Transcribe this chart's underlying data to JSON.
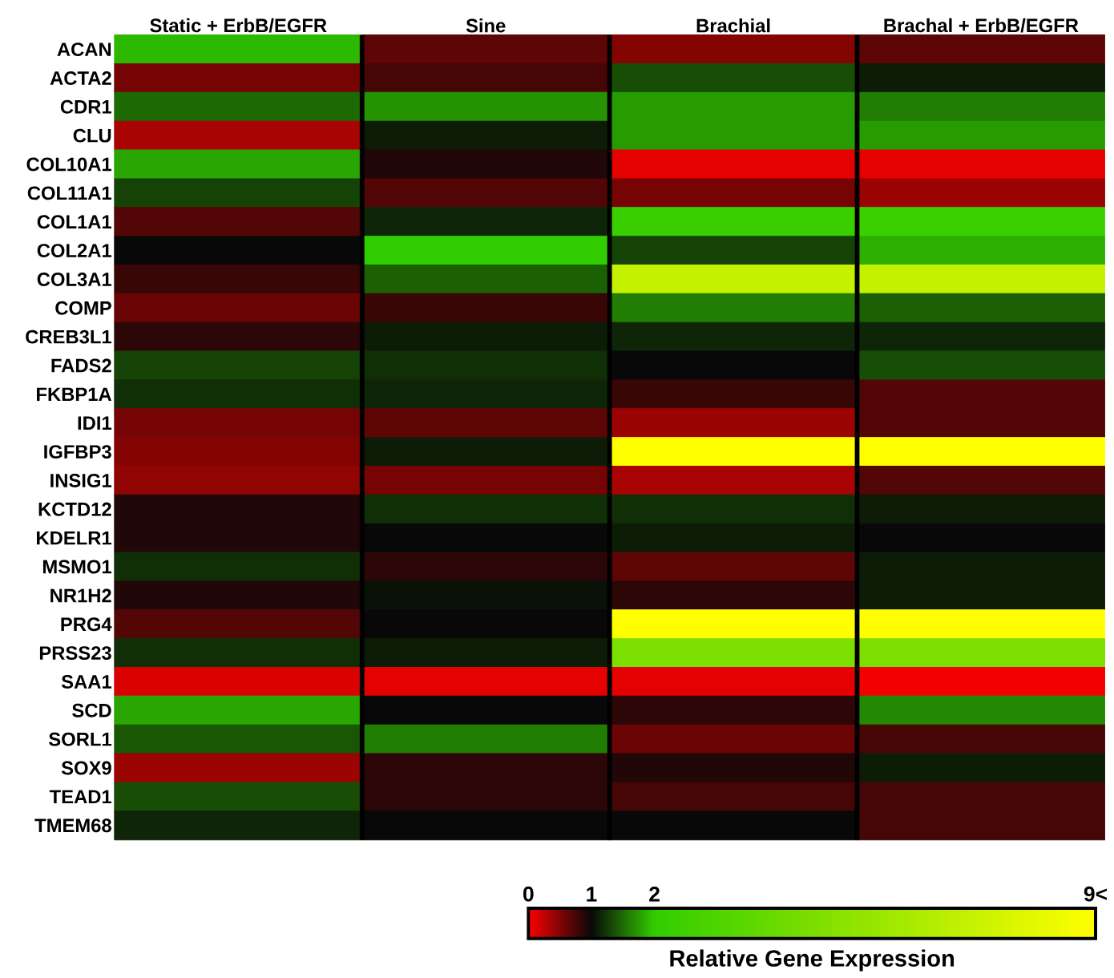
{
  "chart_data": {
    "type": "heatmap",
    "categories": [
      "Static + ErbB/EGFR",
      "Sine",
      "Brachial",
      "Brachal + ErbB/EGFR"
    ],
    "y_categories": [
      "ACAN",
      "ACTA2",
      "CDR1",
      "CLU",
      "COL10A1",
      "COL11A1",
      "COL1A1",
      "COL2A1",
      "COL3A1",
      "COMP",
      "CREB3L1",
      "FADS2",
      "FKBP1A",
      "IDI1",
      "IGFBP3",
      "INSIG1",
      "KCTD12",
      "KDELR1",
      "MSMO1",
      "NR1H2",
      "PRG4",
      "PRSS23",
      "SAA1",
      "SCD",
      "SORL1",
      "SOX9",
      "TEAD1",
      "TMEM68"
    ],
    "cells": [
      [
        1.9,
        0.65,
        0.5,
        0.65
      ],
      [
        0.55,
        0.75,
        1.35,
        1.1
      ],
      [
        1.5,
        1.7,
        1.75,
        1.6
      ],
      [
        0.35,
        1.1,
        1.75,
        1.75
      ],
      [
        1.8,
        0.9,
        0.1,
        0.1
      ],
      [
        1.3,
        0.7,
        0.55,
        0.4
      ],
      [
        0.7,
        1.15,
        2.2,
        2.3
      ],
      [
        1.0,
        2.0,
        1.3,
        1.85
      ],
      [
        0.8,
        1.45,
        7,
        7
      ],
      [
        0.6,
        0.8,
        1.6,
        1.45
      ],
      [
        0.85,
        1.1,
        1.15,
        1.15
      ],
      [
        1.3,
        1.2,
        1.0,
        1.35
      ],
      [
        1.2,
        1.15,
        0.8,
        0.7
      ],
      [
        0.55,
        0.65,
        0.4,
        0.7
      ],
      [
        0.5,
        1.1,
        9,
        9
      ],
      [
        0.45,
        0.55,
        0.35,
        0.7
      ],
      [
        0.9,
        1.2,
        1.2,
        1.1
      ],
      [
        0.9,
        1.0,
        1.1,
        1.0
      ],
      [
        1.2,
        0.85,
        0.65,
        1.1
      ],
      [
        0.9,
        1.05,
        0.85,
        1.1
      ],
      [
        0.7,
        1.0,
        9,
        9
      ],
      [
        1.2,
        1.1,
        4.5,
        4.5
      ],
      [
        0.15,
        0.1,
        0.1,
        0.05
      ],
      [
        1.8,
        1.0,
        0.85,
        1.65
      ],
      [
        1.4,
        1.6,
        0.6,
        0.75
      ],
      [
        0.4,
        0.85,
        0.9,
        1.1
      ],
      [
        1.35,
        0.85,
        0.75,
        0.75
      ],
      [
        1.15,
        1.0,
        1.0,
        0.75
      ]
    ],
    "clim": [
      0,
      9
    ],
    "cticks": [
      0,
      1,
      2,
      {
        "value": 9,
        "label": "9<"
      }
    ],
    "clabel": "Relative Gene Expression"
  }
}
